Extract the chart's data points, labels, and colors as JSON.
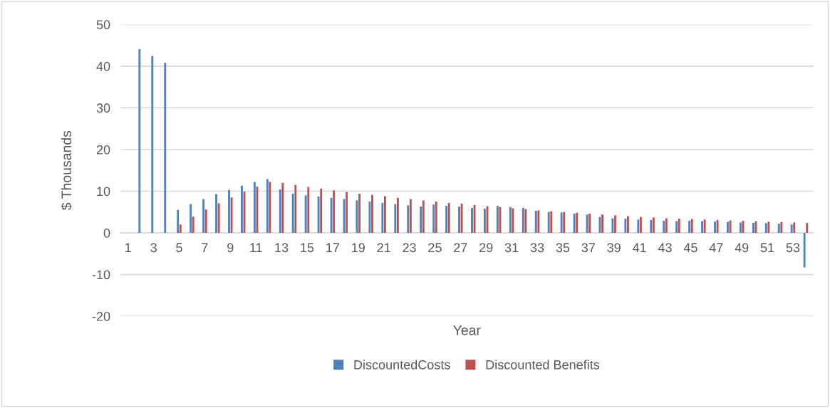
{
  "chart_data": {
    "type": "bar",
    "xlabel": "Year",
    "ylabel": "$ Thousands",
    "categories": [
      "1",
      null,
      "3",
      null,
      "5",
      null,
      "7",
      null,
      "9",
      null,
      "11",
      null,
      "13",
      null,
      "15",
      null,
      "17",
      null,
      "19",
      null,
      "21",
      null,
      "23",
      null,
      "25",
      null,
      "27",
      null,
      "29",
      null,
      "31",
      null,
      "33",
      null,
      "35",
      null,
      "37",
      null,
      "39",
      null,
      "41",
      null,
      "43",
      null,
      "45",
      null,
      "47",
      null,
      "49",
      null,
      "51",
      null,
      "53",
      null
    ],
    "series": [
      {
        "name": "DiscountedCosts",
        "color": "#4f81bd",
        "values": [
          null,
          44.1,
          42.4,
          40.8,
          5.5,
          6.9,
          8.1,
          9.3,
          10.3,
          11.3,
          12.2,
          12.9,
          10.4,
          9.4,
          9.0,
          8.7,
          8.4,
          8.1,
          7.8,
          7.5,
          7.2,
          6.9,
          6.6,
          6.3,
          6.8,
          6.5,
          6.3,
          6.0,
          5.8,
          6.5,
          6.2,
          6.0,
          5.3,
          5.0,
          4.9,
          4.6,
          4.4,
          3.8,
          3.5,
          3.4,
          3.2,
          3.1,
          2.9,
          2.8,
          2.9,
          2.8,
          2.7,
          2.6,
          2.5,
          2.4,
          2.3,
          2.2,
          2.0,
          -8.3
        ]
      },
      {
        "name": "Discounted Benefits",
        "color": "#c0504d",
        "values": [
          null,
          null,
          null,
          null,
          2.0,
          3.9,
          5.6,
          7.1,
          8.5,
          9.9,
          11.1,
          12.2,
          12.0,
          11.5,
          11.0,
          10.6,
          10.2,
          9.8,
          9.4,
          9.1,
          8.8,
          8.4,
          8.1,
          7.8,
          7.5,
          7.2,
          7.0,
          6.7,
          6.4,
          6.2,
          5.9,
          5.7,
          5.4,
          5.2,
          5.0,
          4.8,
          4.6,
          4.4,
          4.2,
          4.0,
          3.8,
          3.7,
          3.5,
          3.4,
          3.3,
          3.2,
          3.1,
          3.0,
          2.9,
          2.8,
          2.7,
          2.6,
          2.5,
          2.4
        ]
      }
    ],
    "ylim": [
      -20,
      50
    ],
    "yticks": [
      -20,
      -10,
      0,
      10,
      20,
      30,
      40,
      50
    ],
    "grid": "y",
    "legend": "bottom"
  }
}
